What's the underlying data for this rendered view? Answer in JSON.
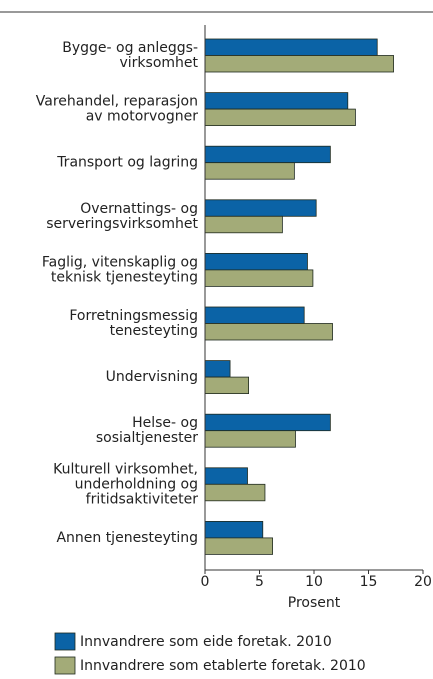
{
  "chart_data": {
    "type": "barh",
    "categories": [
      "Bygge- og anleggs-\nvirksomhet",
      "Varehandel, reparasjon\nav motorvogner",
      "Transport og lagring",
      "Overnattings- og\nserveringsvirksomhet",
      "Faglig, vitenskaplig og\nteknisk tjenesteyting",
      "Forretningsmessig\ntenesteyting",
      "Undervisning",
      "Helse- og\nsosialtjenester",
      "Kulturell virksomhet,\nunderholdning og\nfritidsaktiviteter",
      "Annen tjenesteyting"
    ],
    "series": [
      {
        "name": "Innvandrere som eide foretak. 2010",
        "color": "#0b63a6",
        "values": [
          15.8,
          13.1,
          11.5,
          10.2,
          9.4,
          9.1,
          2.3,
          11.5,
          3.9,
          5.3
        ]
      },
      {
        "name": "Innvandrere som etablerte foretak. 2010",
        "color": "#a3ab78",
        "values": [
          17.3,
          13.8,
          8.2,
          7.1,
          9.9,
          11.7,
          4.0,
          8.3,
          5.5,
          6.2
        ]
      }
    ],
    "xlabel": "Prosent",
    "xlim": [
      0,
      20
    ],
    "xticks": [
      0,
      5,
      10,
      15,
      20
    ]
  }
}
